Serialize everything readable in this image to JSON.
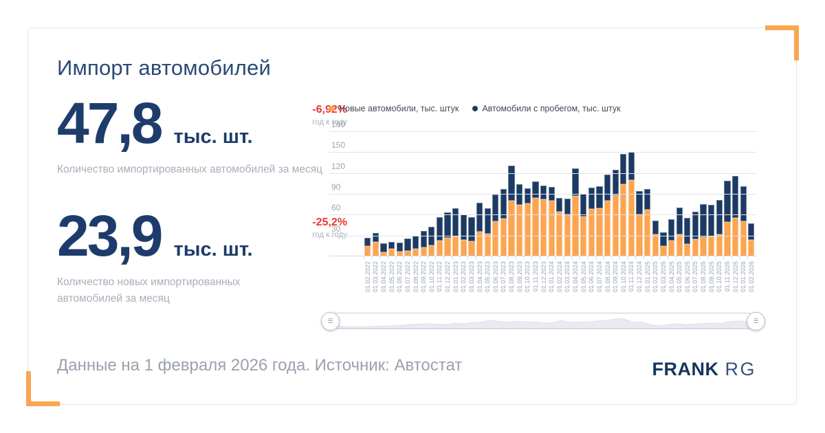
{
  "header": {
    "title": "Импорт автомобилей"
  },
  "stats": [
    {
      "value": "47,8",
      "unit": "тыс. шт.",
      "delta": "-6,92%",
      "delta_label": "год к году",
      "caption": "Количество импортированных автомобилей за месяц"
    },
    {
      "value": "23,9",
      "unit": "тыс. шт.",
      "delta": "-25,2%",
      "delta_label": "год к году",
      "caption": "Количество новых импортированных автомобилей за месяц"
    }
  ],
  "footer": {
    "text": "Данные на 1 февраля 2026 года. Источник: Автостат",
    "brand_primary": "FRANK",
    "brand_secondary": "RG"
  },
  "colors": {
    "accent_orange": "#F9A64F",
    "bar_new": "#FCA551",
    "bar_used": "#1C3A63",
    "delta_negative": "#E8382C",
    "navy_text": "#1E3C6B",
    "muted_text": "#A7AEB9",
    "grid_line": "#DFE3ED"
  },
  "chart_data": {
    "type": "bar",
    "stacked": true,
    "title": "",
    "xlabel": "",
    "ylabel": "",
    "ylim": [
      0,
      186
    ],
    "yticks": [
      30,
      60,
      90,
      120,
      150,
      180
    ],
    "grid": true,
    "legend_position": "top",
    "categories": [
      "01.02.2022",
      "01.03.2022",
      "01.04.2022",
      "01.05.2022",
      "01.06.2022",
      "01.07.2022",
      "01.08.2022",
      "01.09.2022",
      "01.10.2022",
      "01.11.2022",
      "01.12.2022",
      "01.01.2023",
      "01.02.2023",
      "01.03.2023",
      "01.04.2023",
      "01.05.2023",
      "01.06.2023",
      "01.07.2023",
      "01.08.2023",
      "01.09.2023",
      "01.10.2023",
      "01.11.2023",
      "01.12.2023",
      "01.01.2024",
      "01.02.2024",
      "01.03.2024",
      "01.04.2024",
      "01.05.2024",
      "01.06.2024",
      "01.07.2024",
      "01.08.2024",
      "01.09.2024",
      "01.10.2024",
      "01.11.2024",
      "01.12.2024",
      "01.01.2025",
      "01.02.2025",
      "01.03.2025",
      "01.04.2025",
      "01.05.2025",
      "01.06.2025",
      "01.07.2025",
      "01.08.2025",
      "01.09.2025",
      "01.10.2025",
      "01.11.2025",
      "01.12.2025",
      "01.01.2026",
      "01.02.2026"
    ],
    "series": [
      {
        "name": "Новые автомобили, тыс. штук",
        "color": "#FCA551",
        "values": [
          15,
          21,
          6,
          11,
          7,
          8,
          11,
          13,
          16,
          23,
          27,
          29,
          24,
          22,
          36,
          33,
          50,
          54,
          80,
          74,
          76,
          84,
          82,
          80,
          64,
          60,
          87,
          57,
          68,
          69,
          80,
          88,
          104,
          110,
          60,
          67,
          32,
          15,
          23,
          32,
          18,
          25,
          28,
          29,
          32,
          49,
          55,
          50,
          23.9
        ]
      },
      {
        "name": "Автомобили с пробегом, тыс. штук",
        "color": "#1C3A63",
        "values": [
          12,
          13,
          13,
          10,
          13,
          18,
          19,
          24,
          27,
          33,
          36,
          40,
          36,
          34,
          41,
          36,
          39,
          43,
          51,
          30,
          22,
          24,
          20,
          20,
          20,
          23,
          40,
          33,
          31,
          32,
          38,
          37,
          43,
          40,
          34,
          30,
          19,
          20,
          30,
          38,
          37,
          39,
          47,
          45,
          49,
          60,
          61,
          51,
          23.9
        ]
      }
    ]
  }
}
